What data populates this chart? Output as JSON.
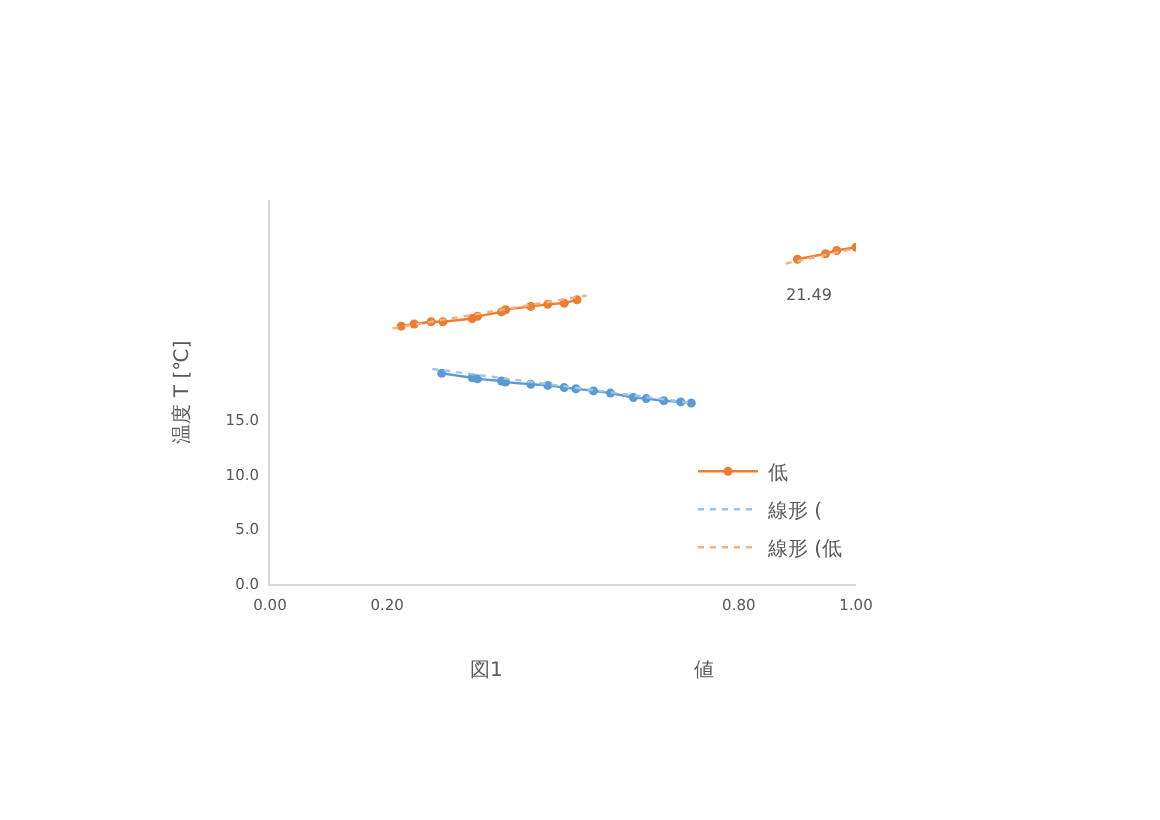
{
  "chart_data": {
    "type": "line",
    "ylabel": "温度 T [℃]",
    "xlim": [
      0,
      1.0
    ],
    "xticks": [
      {
        "value": 0,
        "label": "0.00"
      },
      {
        "value": 0.2,
        "label": "0.20"
      },
      {
        "value": 0.8,
        "label": "0.80"
      },
      {
        "value": 1.0,
        "label": "1.00"
      }
    ],
    "ylim": [
      0,
      35
    ],
    "yticks": [
      {
        "value": 0,
        "label": "0.0"
      },
      {
        "value": 5,
        "label": "5.0"
      },
      {
        "value": 10,
        "label": "10.0"
      },
      {
        "value": 15,
        "label": "15.0"
      }
    ],
    "marker": "circle",
    "legend": "bottom right",
    "series": [
      {
        "color": "#5b9bd5",
        "x": [
          0.293,
          0.345,
          0.354,
          0.395,
          0.402,
          0.445,
          0.474,
          0.502,
          0.522,
          0.552,
          0.581,
          0.62,
          0.642,
          0.672,
          0.701,
          0.719
        ],
        "values": [
          19.2,
          18.8,
          18.7,
          18.5,
          18.4,
          18.2,
          18.1,
          17.9,
          17.8,
          17.6,
          17.4,
          17.0,
          16.9,
          16.7,
          16.6,
          16.5
        ]
      },
      {
        "name": "低",
        "color": "#ed7d31",
        "x": [
          0.224,
          0.246,
          0.275,
          0.295,
          0.345,
          0.354,
          0.395,
          0.402,
          0.445,
          0.474,
          0.502,
          0.524,
          0.7,
          0.9,
          0.948,
          0.967,
          1.0
        ],
        "values": [
          23.5,
          23.7,
          23.9,
          23.9,
          24.2,
          24.4,
          24.8,
          25.0,
          25.3,
          25.5,
          25.6,
          25.9,
          null,
          29.6,
          30.1,
          30.4,
          30.7
        ]
      },
      {
        "name": "線形 (",
        "type": "line",
        "color": "#9dc3e6",
        "line_style": "dotted",
        "marker": "none",
        "x": [
          0.277,
          0.719
        ],
        "values": [
          19.6,
          16.5
        ]
      },
      {
        "name": "線形 (低",
        "type": "line",
        "color": "#f4b183",
        "line_style": "dotted",
        "marker": "none",
        "x": [
          0.209,
          0.54,
          0.7,
          0.88,
          1.0
        ],
        "values": [
          23.3,
          26.3,
          null,
          29.2,
          30.6
        ]
      }
    ],
    "annotations": [
      "図1",
      "値",
      "21.49"
    ]
  }
}
